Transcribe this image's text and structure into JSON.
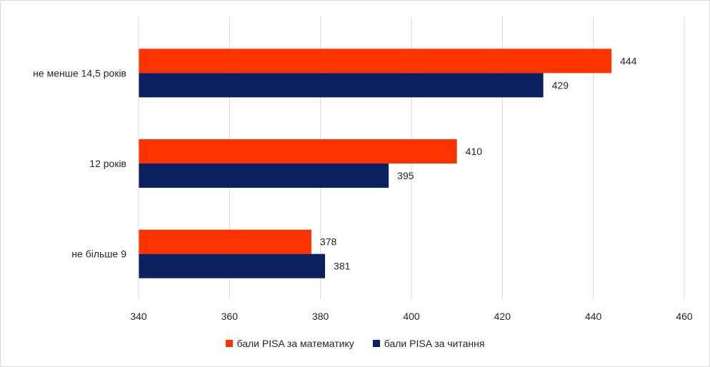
{
  "chart_data": {
    "type": "bar",
    "orientation": "horizontal",
    "categories": [
      "не менше 14,5 років",
      "12 років",
      "не більше 9"
    ],
    "series": [
      {
        "name": "бали PISA за математику",
        "color": "#ff3300",
        "values": [
          444,
          410,
          378
        ]
      },
      {
        "name": "бали PISA за читання",
        "color": "#0b2161",
        "values": [
          429,
          395,
          381
        ]
      }
    ],
    "x_ticks": [
      340,
      360,
      380,
      400,
      420,
      440,
      460
    ],
    "xlim": [
      340,
      460
    ],
    "grid": true,
    "legend_position": "bottom",
    "data_labels": true
  }
}
